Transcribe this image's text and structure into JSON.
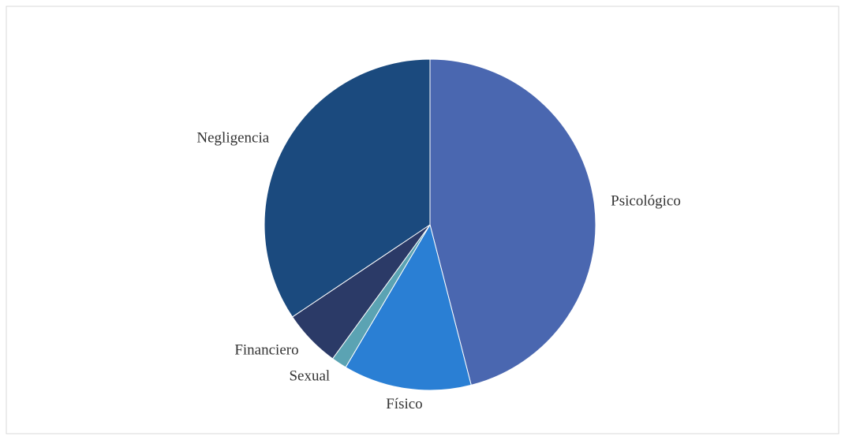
{
  "chart_data": {
    "type": "pie",
    "categories": [
      "Psicológico",
      "Físico",
      "Sexual",
      "Financiero",
      "Negligencia"
    ],
    "values": [
      46,
      12.5,
      1.5,
      5.6,
      34.4
    ],
    "colors": [
      "#4a67b0",
      "#2a7fd4",
      "#5ba3b3",
      "#2b3a67",
      "#1b4a7e"
    ]
  }
}
